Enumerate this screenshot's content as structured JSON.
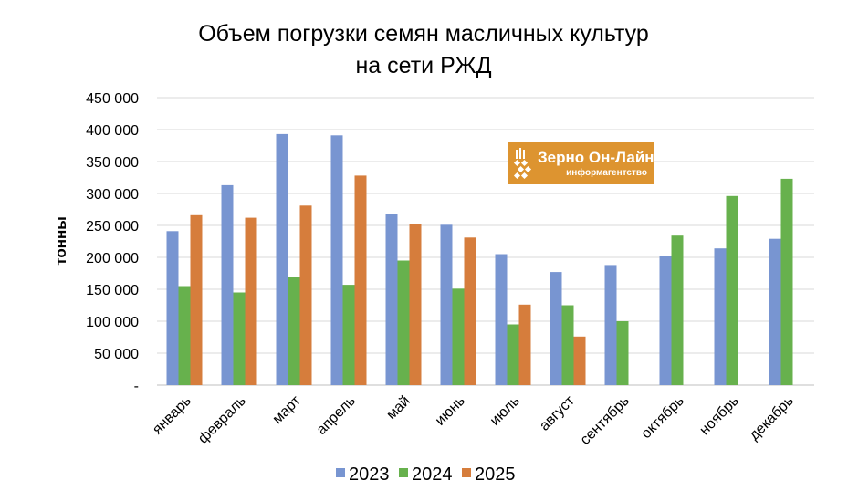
{
  "chart_data": {
    "type": "bar",
    "title_lines": [
      "Объем погрузки семян масличных культур",
      "на сети РЖД"
    ],
    "ylabel": "тонны",
    "ylim": [
      0,
      450000
    ],
    "yticks": [
      0,
      50000,
      100000,
      150000,
      200000,
      250000,
      300000,
      350000,
      400000,
      450000
    ],
    "ytick_labels": [
      "-",
      "50 000",
      "100 000",
      "150 000",
      "200 000",
      "250 000",
      "300 000",
      "350 000",
      "400 000",
      "450 000"
    ],
    "categories": [
      "январь",
      "февраль",
      "март",
      "апрель",
      "май",
      "июнь",
      "июль",
      "август",
      "сентябрь",
      "октябрь",
      "ноябрь",
      "декабрь"
    ],
    "series": [
      {
        "name": "2023",
        "color": "#7895d1",
        "values": [
          241000,
          313000,
          393000,
          391000,
          268000,
          251000,
          205000,
          177000,
          188000,
          202000,
          214000,
          229000
        ]
      },
      {
        "name": "2024",
        "color": "#67b14d",
        "values": [
          155000,
          145000,
          170000,
          157000,
          195000,
          151000,
          95000,
          125000,
          100000,
          234000,
          296000,
          323000
        ]
      },
      {
        "name": "2025",
        "color": "#d67d3c",
        "values": [
          266000,
          262000,
          281000,
          328000,
          252000,
          231000,
          126000,
          76000,
          null,
          null,
          null,
          null
        ]
      }
    ],
    "grid": true,
    "legend_position": "bottom"
  },
  "logo": {
    "title": "Зерно Он-Лайн",
    "subtitle": "информагентство",
    "color": "#dd9430"
  }
}
